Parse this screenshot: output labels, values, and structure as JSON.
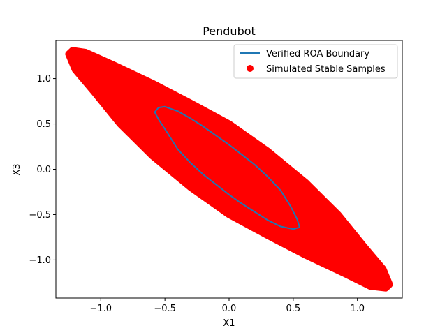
{
  "chart_data": {
    "type": "scatter",
    "title": "Pendubot",
    "xlabel": "X1",
    "ylabel": "X3",
    "xlim": [
      -1.35,
      1.35
    ],
    "ylim": [
      -1.42,
      1.42
    ],
    "xticks": [
      -1.0,
      -0.5,
      0.0,
      0.5,
      1.0
    ],
    "xtick_labels": [
      "−1.0",
      "−0.5",
      "0.0",
      "0.5",
      "1.0"
    ],
    "yticks": [
      -1.0,
      -0.5,
      0.0,
      0.5,
      1.0
    ],
    "ytick_labels": [
      "−1.0",
      "−0.5",
      "0.0",
      "0.5",
      "1.0"
    ],
    "grid": false,
    "legend_position": "top-right",
    "series": [
      {
        "name": "Verified ROA Boundary",
        "kind": "line",
        "color": "#1f77b4",
        "shape": "ellipse",
        "points": [
          [
            -0.55,
            0.68
          ],
          [
            -0.5,
            0.69
          ],
          [
            -0.4,
            0.64
          ],
          [
            -0.3,
            0.56
          ],
          [
            -0.2,
            0.47
          ],
          [
            -0.1,
            0.37
          ],
          [
            0.0,
            0.27
          ],
          [
            0.1,
            0.16
          ],
          [
            0.2,
            0.05
          ],
          [
            0.3,
            -0.08
          ],
          [
            0.4,
            -0.23
          ],
          [
            0.48,
            -0.41
          ],
          [
            0.53,
            -0.55
          ],
          [
            0.55,
            -0.64
          ],
          [
            0.5,
            -0.66
          ],
          [
            0.4,
            -0.63
          ],
          [
            0.3,
            -0.56
          ],
          [
            0.2,
            -0.47
          ],
          [
            0.1,
            -0.38
          ],
          [
            0.0,
            -0.28
          ],
          [
            -0.1,
            -0.17
          ],
          [
            -0.2,
            -0.06
          ],
          [
            -0.3,
            0.07
          ],
          [
            -0.4,
            0.22
          ],
          [
            -0.48,
            0.4
          ],
          [
            -0.55,
            0.55
          ],
          [
            -0.58,
            0.63
          ],
          [
            -0.55,
            0.68
          ]
        ]
      },
      {
        "name": "Simulated Stable Samples",
        "kind": "scatter",
        "color": "#ff0000",
        "region_outline": [
          [
            -1.22,
            1.31
          ],
          [
            -1.12,
            1.29
          ],
          [
            -0.9,
            1.15
          ],
          [
            -0.6,
            0.95
          ],
          [
            -0.3,
            0.73
          ],
          [
            0.0,
            0.5
          ],
          [
            0.3,
            0.2
          ],
          [
            0.6,
            -0.15
          ],
          [
            0.85,
            -0.5
          ],
          [
            1.05,
            -0.85
          ],
          [
            1.2,
            -1.1
          ],
          [
            1.25,
            -1.27
          ],
          [
            1.22,
            -1.31
          ],
          [
            1.1,
            -1.29
          ],
          [
            0.9,
            -1.15
          ],
          [
            0.6,
            -0.95
          ],
          [
            0.3,
            -0.73
          ],
          [
            0.0,
            -0.5
          ],
          [
            -0.3,
            -0.2
          ],
          [
            -0.6,
            0.15
          ],
          [
            -0.85,
            0.5
          ],
          [
            -1.05,
            0.85
          ],
          [
            -1.2,
            1.1
          ],
          [
            -1.25,
            1.27
          ]
        ],
        "samples_approx": [
          [
            -1.2,
            1.29
          ],
          [
            -1.1,
            1.2
          ],
          [
            -1.0,
            1.08
          ],
          [
            -0.9,
            0.98
          ],
          [
            -0.8,
            0.88
          ],
          [
            -0.7,
            0.78
          ],
          [
            -0.6,
            0.65
          ],
          [
            -0.5,
            0.52
          ],
          [
            -0.4,
            0.4
          ],
          [
            -0.3,
            0.3
          ],
          [
            -0.2,
            0.2
          ],
          [
            -0.1,
            0.1
          ],
          [
            0.0,
            0.0
          ],
          [
            0.1,
            -0.1
          ],
          [
            0.2,
            -0.2
          ],
          [
            0.3,
            -0.3
          ],
          [
            0.4,
            -0.4
          ],
          [
            0.5,
            -0.52
          ],
          [
            0.6,
            -0.65
          ],
          [
            0.7,
            -0.78
          ],
          [
            0.8,
            -0.88
          ],
          [
            0.9,
            -0.98
          ],
          [
            1.0,
            -1.08
          ],
          [
            1.1,
            -1.2
          ],
          [
            1.2,
            -1.29
          ]
        ]
      }
    ],
    "legend": [
      {
        "label": "Verified ROA Boundary",
        "marker": "line",
        "color": "#1f77b4"
      },
      {
        "label": "Simulated Stable Samples",
        "marker": "dot",
        "color": "#ff0000"
      }
    ]
  }
}
